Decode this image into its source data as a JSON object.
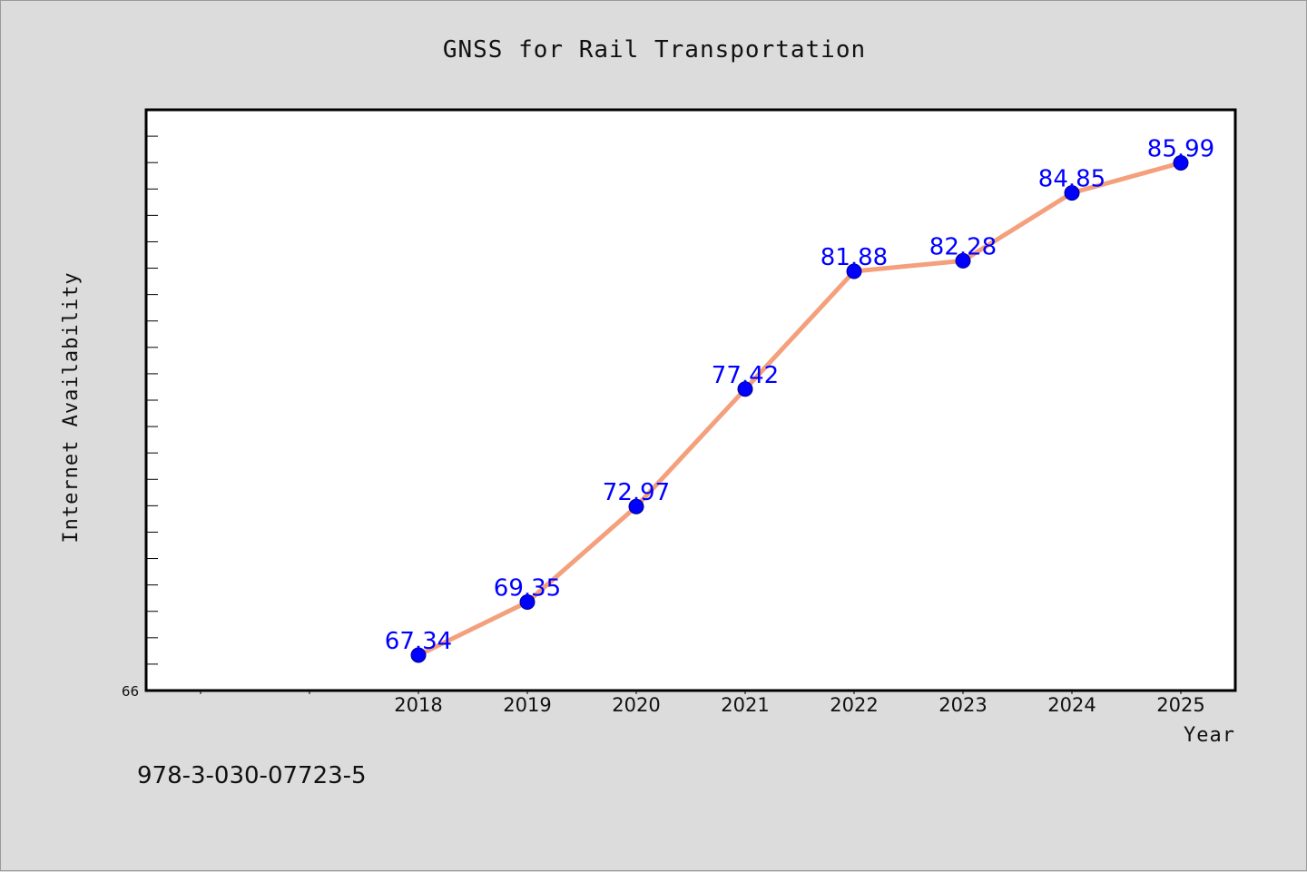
{
  "colors": {
    "background": "#dcdcdc",
    "plot_background": "#ffffff",
    "line": "#f4a07c",
    "marker": "#0000ff",
    "data_label": "#0000ff"
  },
  "footer": {
    "isbn": "978-3-030-07723-5"
  },
  "chart_data": {
    "type": "line",
    "title": "GNSS for Rail Transportation",
    "xlabel": "Year",
    "ylabel": "Internet Availability",
    "categories": [
      "2018",
      "2019",
      "2020",
      "2021",
      "2022",
      "2023",
      "2024",
      "2025"
    ],
    "series": [
      {
        "values": [
          67.34,
          69.35,
          72.97,
          77.42,
          81.88,
          82.28,
          84.85,
          85.99
        ]
      }
    ],
    "data_labels": [
      "67.34",
      "69.35",
      "72.97",
      "77.42",
      "81.88",
      "82.28",
      "84.85",
      "85.99"
    ],
    "ylim": [
      66,
      88
    ],
    "y_tick_labels": [
      "66"
    ],
    "grid": false,
    "legend": "none"
  }
}
